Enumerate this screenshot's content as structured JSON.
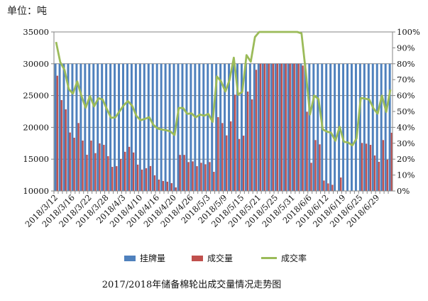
{
  "unit_label": "单位：吨",
  "caption": "2017/2018年储备棉轮出成交量情况走势图",
  "legend": [
    {
      "label": "挂牌量",
      "color": "#4f81bd"
    },
    {
      "label": "成交量",
      "color": "#c0504d"
    },
    {
      "label": "成交率",
      "color": "#9bbb59"
    }
  ],
  "chart_data": {
    "type": "bar",
    "title": "2017/2018年储备棉轮出成交量情况走势图",
    "ylabel": "单位：吨",
    "ylim": [
      10000,
      35000
    ],
    "y2lim": [
      0,
      100
    ],
    "y_ticks": [
      "35000",
      "30000",
      "25000",
      "20000",
      "15000",
      "10000"
    ],
    "y2_ticks": [
      "100%",
      "90%",
      "80%",
      "70%",
      "60%",
      "50%",
      "40%",
      "30%",
      "20%",
      "10%",
      "0%"
    ],
    "x_tick_labels": [
      "2018/3/12",
      "2018/3/16",
      "2018/3/22",
      "2018/3/28",
      "2018/4/3",
      "2018/4/10",
      "2018/4/16",
      "2018/4/20",
      "2018/4/26",
      "2018/5/3",
      "2018/5/9",
      "2018/5/15",
      "2018/5/21",
      "2018/5/25",
      "2018/5/31",
      "2018/6/6",
      "2018/6/12",
      "2018/6/19",
      "2018/6/25",
      "2018/6/29"
    ],
    "x_tick_every": 4,
    "grid": true,
    "legend_position": "bottom",
    "series": [
      {
        "name": "挂牌量",
        "type": "bar",
        "axis": "left",
        "values": [
          30000,
          30000,
          30000,
          30000,
          30000,
          30000,
          30000,
          30000,
          30000,
          30000,
          30000,
          30000,
          30000,
          30000,
          30000,
          30000,
          30000,
          30000,
          30000,
          30000,
          30000,
          30000,
          30000,
          30000,
          30000,
          30000,
          30000,
          30000,
          30000,
          30000,
          30000,
          30000,
          30000,
          30000,
          30000,
          30000,
          30000,
          30000,
          30000,
          30000,
          30000,
          30000,
          30000,
          30000,
          30000,
          30000,
          30000,
          30000,
          30000,
          30000,
          30000,
          30000,
          30000,
          30000,
          30000,
          30000,
          30000,
          30000,
          30000,
          30000,
          30000,
          30000,
          30000,
          30000,
          30000,
          30000,
          30000,
          30000,
          30000,
          30000,
          30000,
          30000,
          30000,
          30000,
          30000,
          30000,
          30000,
          30000,
          30000,
          30000
        ]
      },
      {
        "name": "成交量",
        "type": "bar",
        "axis": "left",
        "values": [
          28120,
          24290,
          22830,
          19190,
          18370,
          20680,
          17920,
          15690,
          17920,
          15950,
          17480,
          17250,
          15470,
          13790,
          13900,
          15020,
          16160,
          16940,
          16050,
          14140,
          13360,
          13580,
          13920,
          12460,
          11790,
          11570,
          11460,
          11230,
          10560,
          15670,
          15670,
          14540,
          14650,
          13900,
          14430,
          14200,
          14540,
          13010,
          21610,
          20680,
          18740,
          20940,
          25140,
          18180,
          18700,
          25630,
          24400,
          29050,
          30000,
          30000,
          30000,
          30000,
          30000,
          30000,
          30000,
          30000,
          30000,
          30000,
          29720,
          22460,
          14430,
          18000,
          17330,
          11640,
          11190,
          10970,
          9450,
          12120,
          9300,
          9150,
          8580,
          9900,
          17550,
          17440,
          17250,
          15580,
          14580,
          18000,
          14910,
          19150
        ]
      },
      {
        "name": "成交率",
        "type": "line",
        "axis": "right",
        "unit": "%",
        "values": [
          93.7,
          81.0,
          76.1,
          64.0,
          61.2,
          68.9,
          59.7,
          52.3,
          59.7,
          53.2,
          58.3,
          57.5,
          51.6,
          46.0,
          46.3,
          50.1,
          53.9,
          56.5,
          53.5,
          47.1,
          44.5,
          45.3,
          46.4,
          41.5,
          39.3,
          38.6,
          38.2,
          37.4,
          35.2,
          52.2,
          52.2,
          48.5,
          48.8,
          46.3,
          48.1,
          47.3,
          48.5,
          43.4,
          72.0,
          68.9,
          62.5,
          69.8,
          83.8,
          60.6,
          62.3,
          85.4,
          81.3,
          96.8,
          100,
          100,
          100,
          100,
          100,
          100,
          100,
          100,
          100,
          100,
          99.1,
          74.9,
          48.1,
          60.0,
          57.8,
          38.8,
          37.3,
          36.6,
          31.5,
          40.4,
          31.0,
          30.5,
          28.6,
          33.0,
          58.5,
          58.1,
          57.5,
          51.9,
          48.6,
          60.0,
          49.7,
          63.8
        ]
      }
    ]
  }
}
